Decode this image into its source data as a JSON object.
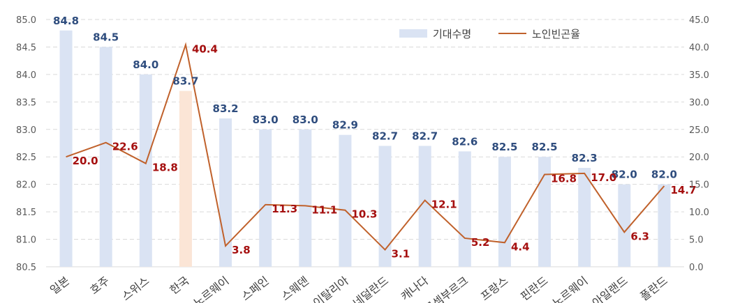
{
  "chart_data": {
    "type": "bar",
    "categories": [
      "일본",
      "호주",
      "스위스",
      "한국",
      "노르웨이",
      "스페인",
      "스웨덴",
      "이탈리아",
      "네덜란드",
      "캐나다",
      "룩셈부르크",
      "프랑스",
      "핀란드",
      "노르웨이",
      "아일랜드",
      "폴란드"
    ],
    "series": [
      {
        "name": "기대수명",
        "kind": "bar",
        "axis": "left",
        "values": [
          84.8,
          84.5,
          84.0,
          83.7,
          83.2,
          83.0,
          83.0,
          82.9,
          82.7,
          82.7,
          82.6,
          82.5,
          82.5,
          82.3,
          82.0,
          82.0
        ],
        "labels": [
          "84.8",
          "84.5",
          "84.0",
          "83.7",
          "83.2",
          "83.0",
          "83.0",
          "82.9",
          "82.7",
          "82.7",
          "82.6",
          "82.5",
          "82.5",
          "82.3",
          "82.0",
          "82.0"
        ],
        "color": "#dae3f3",
        "highlight_index": 3,
        "highlight_color": "#fbe5d6"
      },
      {
        "name": "노인빈곤율",
        "kind": "line",
        "axis": "right",
        "values": [
          20.0,
          22.6,
          18.8,
          40.4,
          3.8,
          11.3,
          11.1,
          10.3,
          3.1,
          12.1,
          5.2,
          4.4,
          16.8,
          17.0,
          6.3,
          14.7
        ],
        "labels": [
          "20.0",
          "22.6",
          "18.8",
          "40.4",
          "3.8",
          "11.3",
          "11.1",
          "10.3",
          "3.1",
          "12.1",
          "5.2",
          "4.4",
          "16.8",
          "17.0",
          "6.3",
          "14.7"
        ],
        "color": "#c0612b"
      }
    ],
    "left_axis": {
      "min": 80.5,
      "max": 85.0,
      "step": 0.5,
      "ticks": [
        "80.5",
        "81.0",
        "81.5",
        "82.0",
        "82.5",
        "83.0",
        "83.5",
        "84.0",
        "84.5",
        "85.0"
      ]
    },
    "right_axis": {
      "min": 0,
      "max": 45,
      "step": 5,
      "ticks": [
        "0.0",
        "5.0",
        "10.0",
        "15.0",
        "20.0",
        "25.0",
        "30.0",
        "35.0",
        "40.0",
        "45.0"
      ]
    },
    "grid": true,
    "grid_color": "#d9d9d9",
    "legend_position": "top-right",
    "bar_label_color": "#2f4d7e",
    "line_label_color": "#a50f0f"
  }
}
